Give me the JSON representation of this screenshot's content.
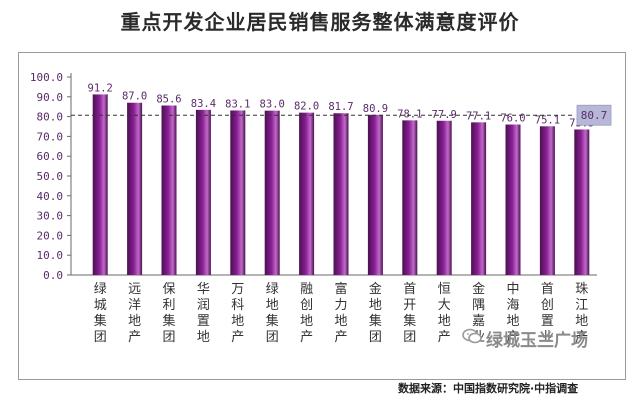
{
  "title": "重点开发企业居民销售服务整体满意度评价",
  "source": "数据来源：中国指数研究院·中指调查",
  "watermark": "绿城玉兰广场",
  "watermark_icon": "wechat-icon",
  "colors": {
    "bar_dark": "#4a1050",
    "bar_mid": "#8a1f95",
    "bar_light": "#c06ac8",
    "avg_box": "#b7b7d8",
    "axis_text": "#5a2b6a",
    "label_text": "#333333"
  },
  "chart_data": {
    "type": "bar",
    "categories": [
      "绿城集团",
      "远洋地产",
      "保利集团",
      "华润置地",
      "万科地产",
      "绿地集团",
      "融创地产",
      "富力地产",
      "金地集团",
      "首开集团",
      "恒大地产",
      "金隅嘉业",
      "中海地产",
      "首创置业",
      "珠江地产"
    ],
    "values": [
      91.2,
      87.0,
      85.6,
      83.4,
      83.1,
      83.0,
      82.0,
      81.7,
      80.9,
      78.1,
      77.9,
      77.1,
      76.0,
      75.1,
      73.5
    ],
    "value_labels": [
      "91.2",
      "87.0",
      "85.6",
      "83.4",
      "83.1",
      "83.0",
      "82.0",
      "81.7",
      "80.9",
      "78.1",
      "77.9",
      "77.1",
      "76.0",
      "75.1",
      "73.5"
    ],
    "ylim": [
      0,
      100
    ],
    "yticks": [
      "0.0",
      "10.0",
      "20.0",
      "30.0",
      "40.0",
      "50.0",
      "60.0",
      "70.0",
      "80.0",
      "90.0",
      "100.0"
    ],
    "reference_line": {
      "value": 80.7,
      "label": "80.7",
      "style": "dashed"
    },
    "grid": false,
    "xlabel": "",
    "ylabel": ""
  }
}
